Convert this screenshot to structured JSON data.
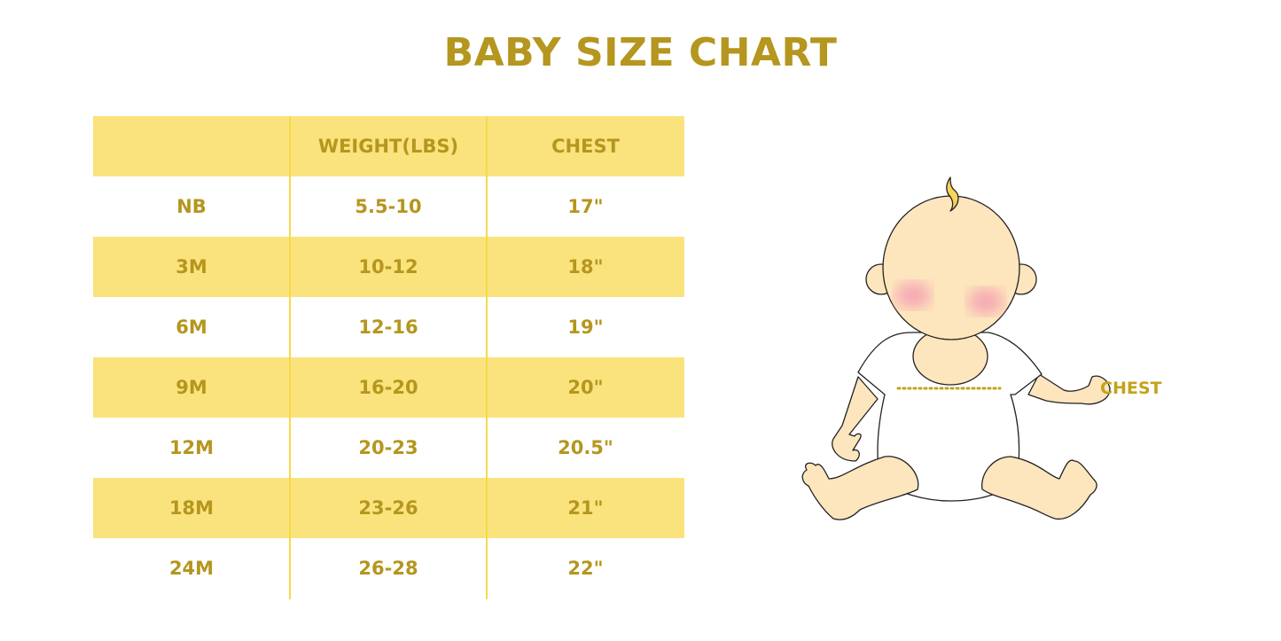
{
  "title": "BABY SIZE CHART",
  "table": {
    "headers": [
      "",
      "WEIGHT(LBS)",
      "CHEST"
    ],
    "rows": [
      [
        "NB",
        "5.5-10",
        "17\""
      ],
      [
        "3M",
        "10-12",
        "18\""
      ],
      [
        "6M",
        "12-16",
        "19\""
      ],
      [
        "9M",
        "16-20",
        "20\""
      ],
      [
        "12M",
        "20-23",
        "20.5\""
      ],
      [
        "18M",
        "23-26",
        "21\""
      ],
      [
        "24M",
        "26-28",
        "22\""
      ]
    ]
  },
  "illustration": {
    "chest_label": "CHEST"
  },
  "colors": {
    "accent": "#b5961e",
    "stripe": "#fae37c",
    "skin": "#fde5bd"
  }
}
